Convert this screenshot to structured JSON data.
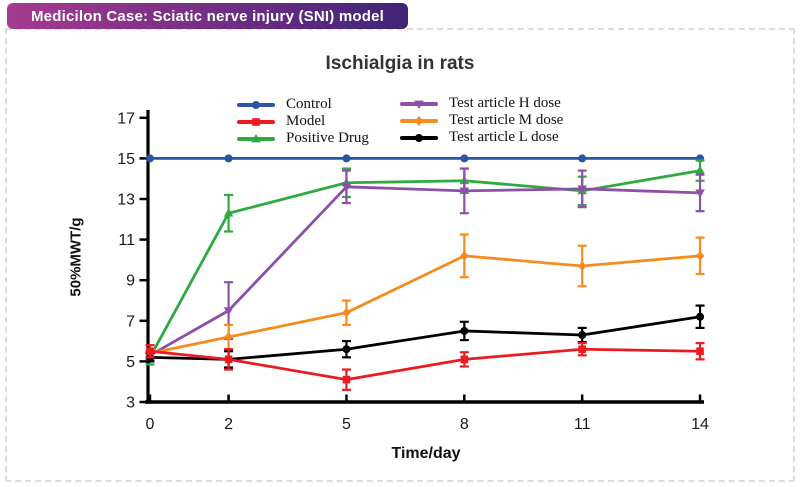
{
  "header": {
    "badge_label": "Medicilon Case: Sciatic nerve injury (SNI) model",
    "badge_gradient_from": "#a63a90",
    "badge_gradient_to": "#402478"
  },
  "chart_data": {
    "type": "line",
    "title": "Ischialgia in rats",
    "xlabel": "Time/day",
    "ylabel": "50%MWT/g",
    "x": [
      0,
      2,
      5,
      8,
      11,
      14
    ],
    "x_ticks": [
      0,
      2,
      5,
      8,
      11,
      14
    ],
    "y_ticks": [
      3,
      5,
      7,
      9,
      11,
      13,
      15,
      17
    ],
    "ylim": [
      3,
      17
    ],
    "xlim": [
      0,
      14
    ],
    "grid": false,
    "legend_position": "top-inside-two-columns",
    "error_bars": true,
    "series": [
      {
        "name": "Control",
        "color": "#2a54a4",
        "marker": "circle",
        "values": [
          15,
          15,
          15,
          15,
          15,
          15
        ],
        "errors": [
          0,
          0,
          0,
          0,
          0,
          0
        ]
      },
      {
        "name": "Model",
        "color": "#ea1c21",
        "marker": "square",
        "values": [
          5.5,
          5.1,
          4.1,
          5.1,
          5.6,
          5.5
        ],
        "errors": [
          0.3,
          0.5,
          0.5,
          0.35,
          0.3,
          0.4
        ]
      },
      {
        "name": "Positive Drug",
        "color": "#2eaa40",
        "marker": "triangle-up",
        "values": [
          5.2,
          12.3,
          13.8,
          13.9,
          13.4,
          14.4
        ],
        "errors": [
          0.35,
          0.9,
          0.7,
          0.6,
          0.7,
          0.5
        ]
      },
      {
        "name": "Test article H dose",
        "color": "#8d4fa8",
        "marker": "triangle-down",
        "values": [
          5.3,
          7.5,
          13.6,
          13.4,
          13.5,
          13.3
        ],
        "errors": [
          0.2,
          1.4,
          0.8,
          1.1,
          0.9,
          0.9
        ]
      },
      {
        "name": "Test article M dose",
        "color": "#f78c1e",
        "marker": "diamond",
        "values": [
          5.4,
          6.2,
          7.4,
          10.2,
          9.7,
          10.2
        ],
        "errors": [
          0.2,
          0.6,
          0.6,
          1.05,
          1.0,
          0.9
        ]
      },
      {
        "name": "Test article L dose",
        "color": "#000000",
        "marker": "circle",
        "values": [
          5.2,
          5.1,
          5.6,
          6.5,
          6.3,
          7.2
        ],
        "errors": [
          0.2,
          0.4,
          0.4,
          0.45,
          0.35,
          0.55
        ]
      }
    ],
    "draw_order": [
      0,
      2,
      3,
      4,
      5,
      1
    ]
  }
}
